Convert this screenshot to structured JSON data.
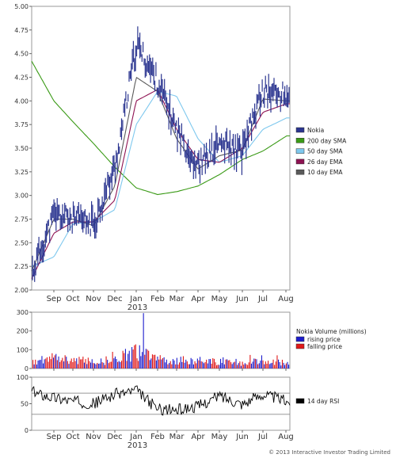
{
  "chart_data": [
    {
      "type": "line",
      "panel": "price",
      "ylim": [
        2.0,
        5.0
      ],
      "y_ticks": [
        "5.00",
        "4.75",
        "4.50",
        "4.25",
        "4.00",
        "3.75",
        "3.50",
        "3.25",
        "3.00",
        "2.75",
        "2.50",
        "2.25",
        "2.00"
      ],
      "x_ticks": [
        "Sep",
        "Oct",
        "Nov",
        "Dec",
        "Jan",
        "Feb",
        "Mar",
        "Apr",
        "May",
        "Jun",
        "Jul",
        "Aug"
      ],
      "year_label": "2013",
      "legend_position": "right",
      "grid": false,
      "series": [
        {
          "name": "Nokia",
          "color": "#2b3590",
          "style": "candlestick",
          "x": [
            "Aug",
            "Sep",
            "Oct",
            "Nov",
            "Dec",
            "Jan",
            "Feb",
            "Mar",
            "Apr",
            "May",
            "Jun",
            "Jul",
            "Aug"
          ],
          "values": [
            2.2,
            2.8,
            2.75,
            2.7,
            3.3,
            4.6,
            4.2,
            3.7,
            3.3,
            3.55,
            3.45,
            4.1,
            4.05
          ]
        },
        {
          "name": "200 day SMA",
          "color": "#3a9a16",
          "x": [
            "Aug",
            "Sep",
            "Oct",
            "Nov",
            "Dec",
            "Jan",
            "Feb",
            "Mar",
            "Apr",
            "May",
            "Jun",
            "Jul",
            "Aug"
          ],
          "values": [
            4.42,
            4.0,
            3.78,
            3.55,
            3.3,
            3.08,
            3.01,
            3.04,
            3.1,
            3.22,
            3.38,
            3.47,
            3.63
          ]
        },
        {
          "name": "50 day SMA",
          "color": "#7ec8ee",
          "x": [
            "Aug",
            "Sep",
            "Oct",
            "Nov",
            "Dec",
            "Jan",
            "Feb",
            "Mar",
            "Apr",
            "May",
            "Jun",
            "Jul",
            "Aug"
          ],
          "values": [
            2.25,
            2.35,
            2.7,
            2.72,
            2.85,
            3.75,
            4.1,
            4.05,
            3.6,
            3.35,
            3.42,
            3.7,
            3.82
          ]
        },
        {
          "name": "26 day EMA",
          "color": "#8e1252",
          "x": [
            "Aug",
            "Sep",
            "Oct",
            "Nov",
            "Dec",
            "Jan",
            "Feb",
            "Mar",
            "Apr",
            "May",
            "Jun",
            "Jul",
            "Aug"
          ],
          "values": [
            2.12,
            2.6,
            2.72,
            2.72,
            2.95,
            4.0,
            4.12,
            3.7,
            3.38,
            3.35,
            3.5,
            3.88,
            3.97
          ]
        },
        {
          "name": "10 day EMA",
          "color": "#5a5a5a",
          "x": [
            "Aug",
            "Sep",
            "Oct",
            "Nov",
            "Dec",
            "Jan",
            "Feb",
            "Mar",
            "Apr",
            "May",
            "Jun",
            "Jul",
            "Aug"
          ],
          "values": [
            2.2,
            2.75,
            2.75,
            2.68,
            3.1,
            4.25,
            4.1,
            3.6,
            3.28,
            3.42,
            3.48,
            4.02,
            4.0
          ]
        }
      ]
    },
    {
      "type": "bar",
      "panel": "volume",
      "ylim": [
        0,
        300
      ],
      "y_ticks": [
        "300",
        "200",
        "100",
        "0"
      ],
      "legend_position": "right",
      "legend_title": "Nokia Volume (millions)",
      "series": [
        {
          "name": "rising price",
          "color": "#1c1ccc"
        },
        {
          "name": "falling price",
          "color": "#e01818"
        }
      ],
      "x": [
        "Aug",
        "Sep",
        "Oct",
        "Nov",
        "Dec",
        "Jan",
        "Feb",
        "Mar",
        "Apr",
        "May",
        "Jun",
        "Jul",
        "Aug"
      ],
      "values": [
        40,
        75,
        55,
        45,
        60,
        110,
        60,
        55,
        50,
        45,
        40,
        45,
        40
      ],
      "peak": 295
    },
    {
      "type": "line",
      "panel": "rsi",
      "ylim": [
        0,
        100
      ],
      "y_ticks": [
        "100",
        "50",
        "0"
      ],
      "reference_lines": [
        30,
        70
      ],
      "x_ticks": [
        "Sep",
        "Oct",
        "Nov",
        "Dec",
        "Jan",
        "Feb",
        "Mar",
        "Apr",
        "May",
        "Jun",
        "Jul",
        "Aug"
      ],
      "year_label": "2013",
      "legend_position": "right",
      "series": [
        {
          "name": "14 day RSI",
          "color": "#000000",
          "x": [
            "Aug",
            "Sep",
            "Oct",
            "Nov",
            "Dec",
            "Jan",
            "Feb",
            "Mar",
            "Apr",
            "May",
            "Jun",
            "Jul",
            "Aug"
          ],
          "values": [
            72,
            62,
            55,
            50,
            68,
            75,
            40,
            38,
            45,
            65,
            50,
            68,
            55
          ]
        }
      ]
    }
  ],
  "footer": {
    "copyright": "© 2013 Interactive Investor Trading Limited"
  }
}
